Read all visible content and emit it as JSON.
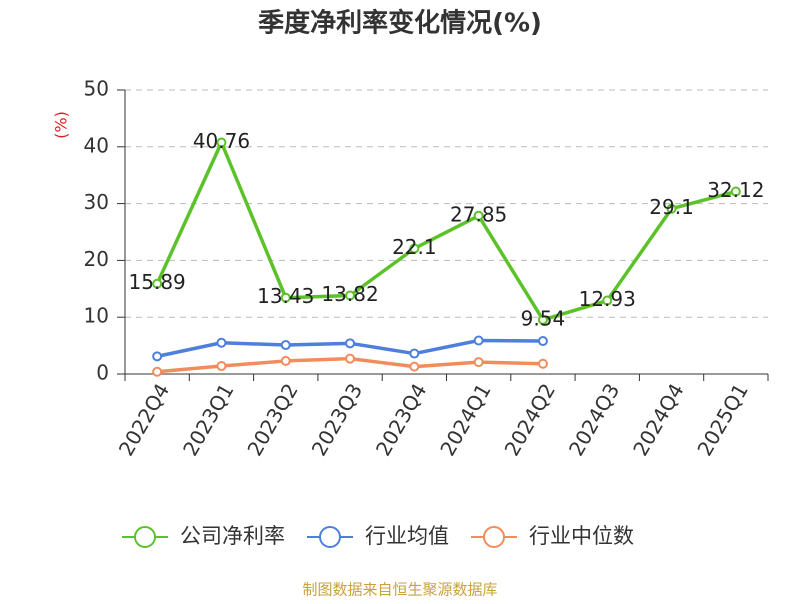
{
  "chart_data": {
    "type": "line",
    "title": "季度净利率变化情况(%)",
    "y_label": "(%)",
    "source": "制图数据来自恒生聚源数据库",
    "categories": [
      "2022Q4",
      "2023Q1",
      "2023Q2",
      "2023Q3",
      "2023Q4",
      "2024Q1",
      "2024Q2",
      "2024Q3",
      "2024Q4",
      "2025Q1"
    ],
    "series": [
      {
        "name": "公司净利率",
        "color": "#5cc22a",
        "values": [
          15.89,
          40.76,
          13.43,
          13.82,
          22.1,
          27.85,
          9.54,
          12.93,
          29.1,
          32.12
        ],
        "show_labels": true
      },
      {
        "name": "行业均值",
        "color": "#4e7fdc",
        "values": [
          3.1,
          5.5,
          5.1,
          5.4,
          3.6,
          5.9,
          5.8,
          null,
          null,
          null
        ]
      },
      {
        "name": "行业中位数",
        "color": "#f28c5c",
        "values": [
          0.4,
          1.4,
          2.3,
          2.7,
          1.3,
          2.1,
          1.8,
          null,
          null,
          null
        ]
      }
    ],
    "ylim": [
      0,
      50
    ],
    "yticks": [
      0,
      10,
      20,
      30,
      40,
      50
    ],
    "grid": true
  }
}
